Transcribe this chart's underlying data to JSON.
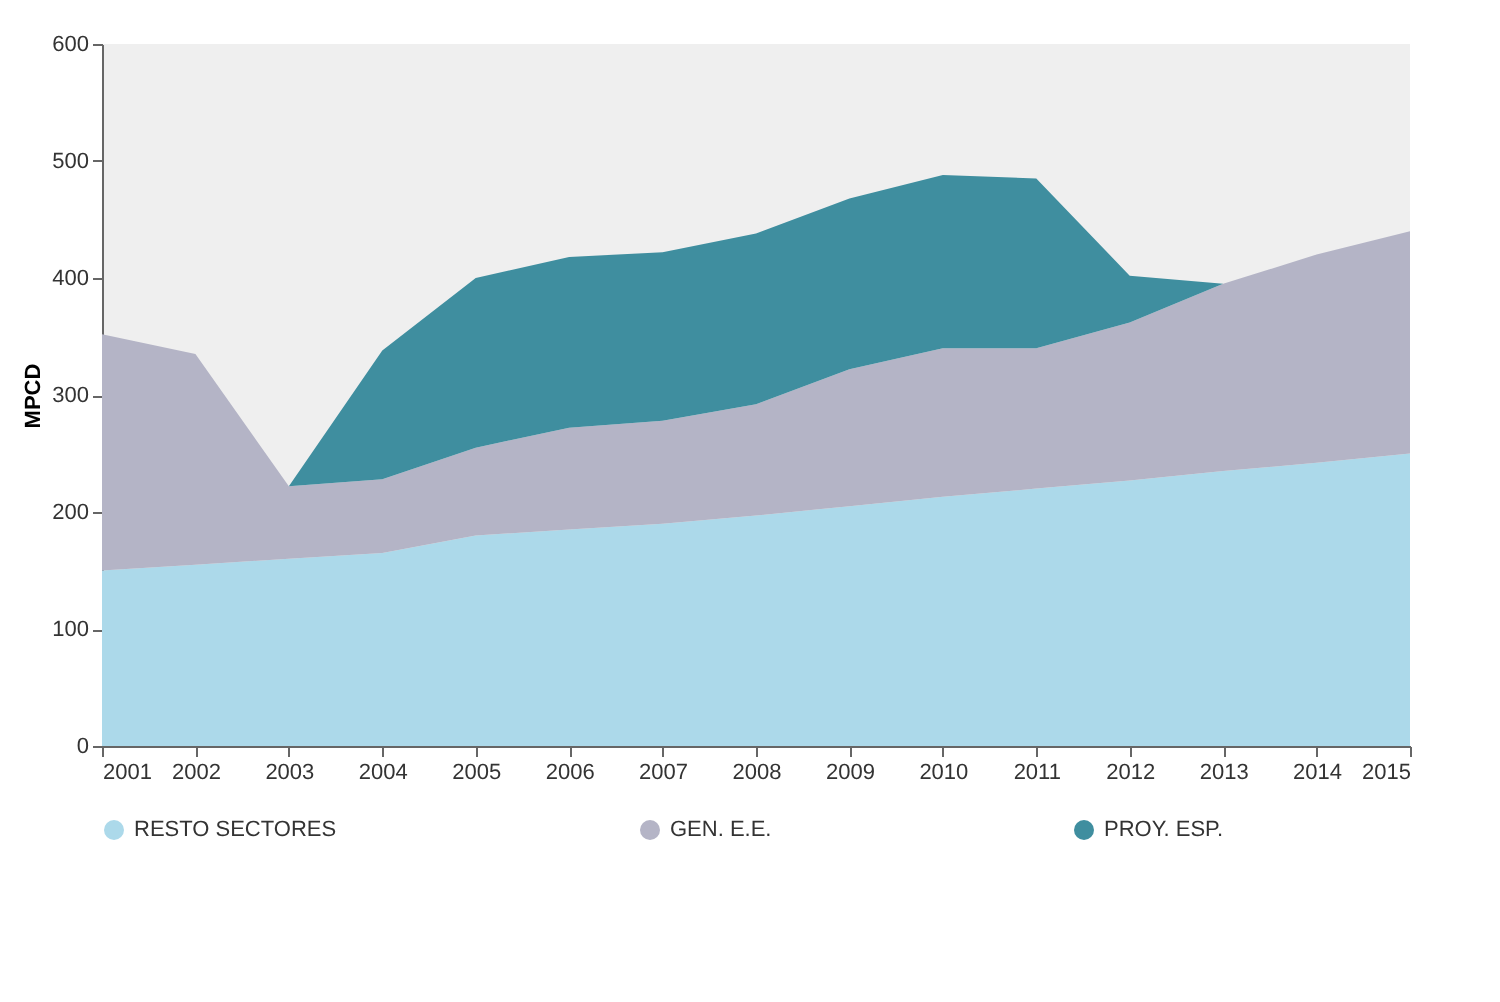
{
  "chart_data": {
    "type": "area",
    "stacked": true,
    "ylabel": "MPCD",
    "x": [
      2001,
      2002,
      2003,
      2004,
      2005,
      2006,
      2007,
      2008,
      2009,
      2010,
      2011,
      2012,
      2013,
      2014,
      2015
    ],
    "series": [
      {
        "name": "RESTO SECTORES",
        "color": "#acd9ea",
        "values": [
          150,
          155,
          160,
          165,
          180,
          185,
          190,
          197,
          205,
          213,
          220,
          227,
          235,
          242,
          250
        ]
      },
      {
        "name": "GEN. E.E.",
        "color": "#b4b4c6",
        "values": [
          202,
          180,
          62,
          63,
          75,
          87,
          88,
          95,
          117,
          127,
          120,
          135,
          160,
          178,
          190
        ]
      },
      {
        "name": "PROY. ESP.",
        "color": "#3f8e9f",
        "values": [
          null,
          null,
          0,
          110,
          145,
          146,
          144,
          146,
          146,
          148,
          145,
          40,
          0,
          null,
          null
        ]
      }
    ],
    "xlim": [
      2001,
      2015
    ],
    "xticks": [
      2001,
      2002,
      2003,
      2004,
      2005,
      2006,
      2007,
      2008,
      2009,
      2010,
      2011,
      2012,
      2013,
      2014,
      2015
    ],
    "ylim": [
      0,
      600
    ],
    "yticks": [
      0,
      100,
      200,
      300,
      400,
      500,
      600
    ],
    "grid": false,
    "legend": "bottom"
  }
}
